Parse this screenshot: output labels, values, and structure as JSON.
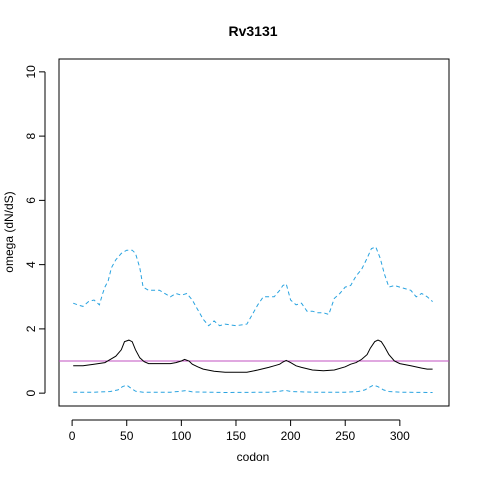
{
  "chart_data": {
    "type": "line",
    "title": "Rv3131",
    "xlabel": "codon",
    "ylabel": "omega (dN/dS)",
    "xlim": [
      -12,
      345
    ],
    "ylim": [
      -0.4,
      10.4
    ],
    "xticks": [
      0,
      50,
      100,
      150,
      200,
      250,
      300
    ],
    "yticks": [
      0,
      2,
      4,
      6,
      8,
      10
    ],
    "reference_line": {
      "y": 1,
      "color": "#c050c0"
    },
    "colors": {
      "estimate": "#000000",
      "upper": "#29a3e0",
      "lower": "#29a3e0"
    },
    "series": [
      {
        "key": "upper",
        "style": "dashed",
        "x": [
          1,
          5,
          10,
          15,
          20,
          25,
          28,
          30,
          33,
          36,
          40,
          45,
          50,
          55,
          58,
          62,
          65,
          70,
          80,
          90,
          95,
          100,
          105,
          110,
          115,
          120,
          125,
          130,
          135,
          140,
          150,
          160,
          170,
          175,
          180,
          185,
          190,
          193,
          196,
          200,
          205,
          210,
          215,
          220,
          225,
          230,
          235,
          240,
          245,
          250,
          255,
          260,
          265,
          270,
          274,
          278,
          282,
          286,
          290,
          295,
          300,
          310,
          315,
          320,
          325,
          330
        ],
        "y": [
          2.8,
          2.75,
          2.7,
          2.85,
          2.9,
          2.75,
          3.1,
          3.3,
          3.5,
          3.9,
          4.15,
          4.35,
          4.45,
          4.45,
          4.35,
          3.9,
          3.3,
          3.2,
          3.2,
          3.0,
          3.1,
          3.05,
          3.1,
          2.9,
          2.6,
          2.3,
          2.1,
          2.25,
          2.1,
          2.15,
          2.1,
          2.15,
          2.75,
          3.0,
          3.0,
          3.0,
          3.2,
          3.35,
          3.4,
          2.9,
          2.75,
          2.8,
          2.55,
          2.55,
          2.5,
          2.5,
          2.45,
          2.95,
          3.1,
          3.3,
          3.35,
          3.65,
          3.85,
          4.2,
          4.5,
          4.55,
          4.2,
          3.7,
          3.3,
          3.35,
          3.3,
          3.2,
          3.0,
          3.1,
          3.0,
          2.85
        ]
      },
      {
        "key": "estimate",
        "style": "solid",
        "x": [
          1,
          10,
          20,
          30,
          35,
          40,
          45,
          48,
          52,
          55,
          58,
          62,
          66,
          70,
          80,
          90,
          95,
          100,
          103,
          107,
          110,
          115,
          120,
          130,
          140,
          150,
          160,
          170,
          180,
          185,
          190,
          193,
          196,
          200,
          205,
          210,
          220,
          230,
          240,
          250,
          255,
          260,
          265,
          270,
          273,
          277,
          280,
          283,
          286,
          290,
          295,
          300,
          310,
          320,
          325,
          330
        ],
        "y": [
          0.85,
          0.85,
          0.9,
          0.95,
          1.05,
          1.15,
          1.35,
          1.6,
          1.65,
          1.6,
          1.35,
          1.1,
          0.98,
          0.92,
          0.92,
          0.92,
          0.95,
          1.0,
          1.05,
          1.0,
          0.9,
          0.82,
          0.75,
          0.68,
          0.65,
          0.65,
          0.65,
          0.72,
          0.8,
          0.85,
          0.9,
          0.97,
          1.02,
          0.95,
          0.85,
          0.8,
          0.72,
          0.7,
          0.72,
          0.82,
          0.9,
          0.95,
          1.05,
          1.2,
          1.4,
          1.6,
          1.65,
          1.6,
          1.45,
          1.2,
          1.0,
          0.92,
          0.85,
          0.78,
          0.75,
          0.75
        ]
      },
      {
        "key": "lower",
        "style": "dashed",
        "x": [
          1,
          20,
          35,
          42,
          46,
          50,
          54,
          58,
          65,
          90,
          100,
          104,
          110,
          140,
          180,
          190,
          195,
          200,
          220,
          250,
          262,
          268,
          272,
          276,
          280,
          285,
          290,
          300,
          330
        ],
        "y": [
          0.03,
          0.03,
          0.05,
          0.1,
          0.2,
          0.25,
          0.15,
          0.06,
          0.03,
          0.03,
          0.06,
          0.08,
          0.04,
          0.02,
          0.03,
          0.06,
          0.09,
          0.05,
          0.03,
          0.03,
          0.05,
          0.1,
          0.18,
          0.25,
          0.2,
          0.1,
          0.05,
          0.03,
          0.02
        ]
      }
    ]
  }
}
